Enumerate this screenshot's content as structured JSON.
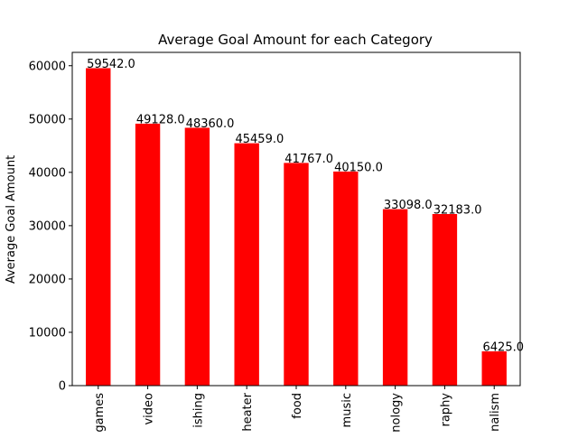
{
  "chart_data": {
    "type": "bar",
    "title": "Average Goal Amount for each Category",
    "xlabel": "",
    "ylabel": "Average Goal Amount",
    "categories": [
      "games",
      "video",
      "ishing",
      "heater",
      "food",
      "music",
      "nology",
      "raphy",
      "nalism"
    ],
    "values": [
      59542.0,
      49128.0,
      48360.0,
      45459.0,
      41767.0,
      40150.0,
      33098.0,
      32183.0,
      6425.0
    ],
    "data_labels": [
      "59542.0",
      "49128.0",
      "48360.0",
      "45459.0",
      "41767.0",
      "40150.0",
      "33098.0",
      "32183.0",
      "6425.0"
    ],
    "ylim": [
      0,
      62500
    ],
    "yticks": [
      0,
      10000,
      20000,
      30000,
      40000,
      50000,
      60000
    ],
    "ytick_labels": [
      "0",
      "10000",
      "20000",
      "30000",
      "40000",
      "50000",
      "60000"
    ],
    "grid": false,
    "legend": "none",
    "bar_color": "#ff0000"
  }
}
